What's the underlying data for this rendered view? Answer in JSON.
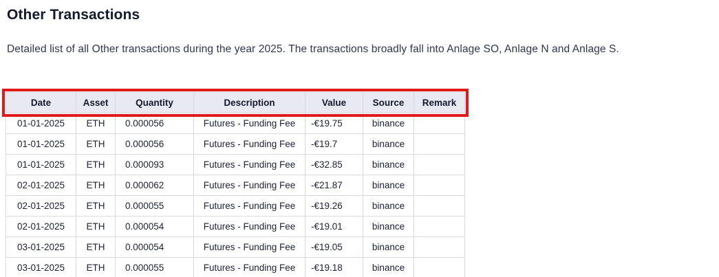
{
  "page": {
    "title": "Other Transactions",
    "subtitle": "Detailed list of all Other transactions during the year 2025. The transactions broadly fall into Anlage SO, Anlage N and Anlage S."
  },
  "table": {
    "columns": [
      "Date",
      "Asset",
      "Quantity",
      "Description",
      "Value",
      "Source",
      "Remark"
    ],
    "column_keys": [
      "date",
      "asset",
      "quantity",
      "description",
      "value",
      "source",
      "remark"
    ],
    "rows": [
      [
        "01-01-2025",
        "ETH",
        "0.000056",
        "Futures - Funding Fee",
        "-€19.75",
        "binance",
        ""
      ],
      [
        "01-01-2025",
        "ETH",
        "0.000056",
        "Futures - Funding Fee",
        "-€19.7",
        "binance",
        ""
      ],
      [
        "01-01-2025",
        "ETH",
        "0.000093",
        "Futures - Funding Fee",
        "-€32.85",
        "binance",
        ""
      ],
      [
        "02-01-2025",
        "ETH",
        "0.000062",
        "Futures - Funding Fee",
        "-€21.87",
        "binance",
        ""
      ],
      [
        "02-01-2025",
        "ETH",
        "0.000055",
        "Futures - Funding Fee",
        "-€19.26",
        "binance",
        ""
      ],
      [
        "02-01-2025",
        "ETH",
        "0.000054",
        "Futures - Funding Fee",
        "-€19.01",
        "binance",
        ""
      ],
      [
        "03-01-2025",
        "ETH",
        "0.000054",
        "Futures - Funding Fee",
        "-€19.05",
        "binance",
        ""
      ],
      [
        "03-01-2025",
        "ETH",
        "0.000055",
        "Futures - Funding Fee",
        "-€19.18",
        "binance",
        ""
      ]
    ]
  },
  "annotation": {
    "highlight_color": "#e01a1a"
  }
}
